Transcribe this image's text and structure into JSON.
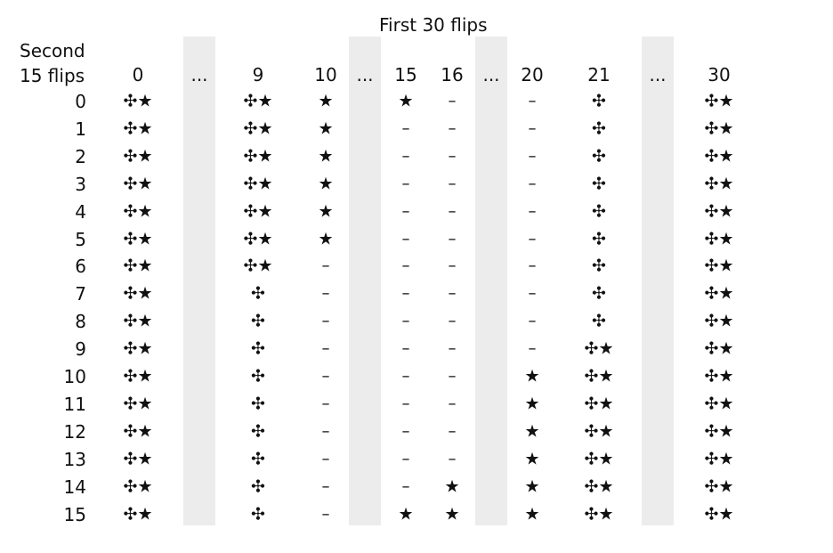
{
  "title": "First 30 flips",
  "row_header": [
    "Second",
    "15 flips"
  ],
  "columns": [
    "0",
    "...",
    "9",
    "10",
    "...",
    "15",
    "16",
    "...",
    "20",
    "21",
    "...",
    "30"
  ],
  "shaded_columns": [
    1,
    4,
    7,
    10
  ],
  "rows": [
    "0",
    "1",
    "2",
    "3",
    "4",
    "5",
    "6",
    "7",
    "8",
    "9",
    "10",
    "11",
    "12",
    "13",
    "14",
    "15"
  ],
  "symbols": {
    "clover_star": "✣★",
    "clover": "✣",
    "star": "★",
    "none": "–"
  },
  "legend_codes": {
    "B": "clover_star",
    "C": "clover",
    "S": "star",
    "N": "none"
  },
  "cells": [
    [
      "B",
      "",
      "B",
      "S",
      "",
      "S",
      "N",
      "",
      "N",
      "C",
      "",
      "B"
    ],
    [
      "B",
      "",
      "B",
      "S",
      "",
      "N",
      "N",
      "",
      "N",
      "C",
      "",
      "B"
    ],
    [
      "B",
      "",
      "B",
      "S",
      "",
      "N",
      "N",
      "",
      "N",
      "C",
      "",
      "B"
    ],
    [
      "B",
      "",
      "B",
      "S",
      "",
      "N",
      "N",
      "",
      "N",
      "C",
      "",
      "B"
    ],
    [
      "B",
      "",
      "B",
      "S",
      "",
      "N",
      "N",
      "",
      "N",
      "C",
      "",
      "B"
    ],
    [
      "B",
      "",
      "B",
      "S",
      "",
      "N",
      "N",
      "",
      "N",
      "C",
      "",
      "B"
    ],
    [
      "B",
      "",
      "B",
      "N",
      "",
      "N",
      "N",
      "",
      "N",
      "C",
      "",
      "B"
    ],
    [
      "B",
      "",
      "C",
      "N",
      "",
      "N",
      "N",
      "",
      "N",
      "C",
      "",
      "B"
    ],
    [
      "B",
      "",
      "C",
      "N",
      "",
      "N",
      "N",
      "",
      "N",
      "C",
      "",
      "B"
    ],
    [
      "B",
      "",
      "C",
      "N",
      "",
      "N",
      "N",
      "",
      "N",
      "B",
      "",
      "B"
    ],
    [
      "B",
      "",
      "C",
      "N",
      "",
      "N",
      "N",
      "",
      "S",
      "B",
      "",
      "B"
    ],
    [
      "B",
      "",
      "C",
      "N",
      "",
      "N",
      "N",
      "",
      "S",
      "B",
      "",
      "B"
    ],
    [
      "B",
      "",
      "C",
      "N",
      "",
      "N",
      "N",
      "",
      "S",
      "B",
      "",
      "B"
    ],
    [
      "B",
      "",
      "C",
      "N",
      "",
      "N",
      "N",
      "",
      "S",
      "B",
      "",
      "B"
    ],
    [
      "B",
      "",
      "C",
      "N",
      "",
      "N",
      "S",
      "",
      "S",
      "B",
      "",
      "B"
    ],
    [
      "B",
      "",
      "C",
      "N",
      "",
      "S",
      "S",
      "",
      "S",
      "B",
      "",
      "B"
    ]
  ]
}
